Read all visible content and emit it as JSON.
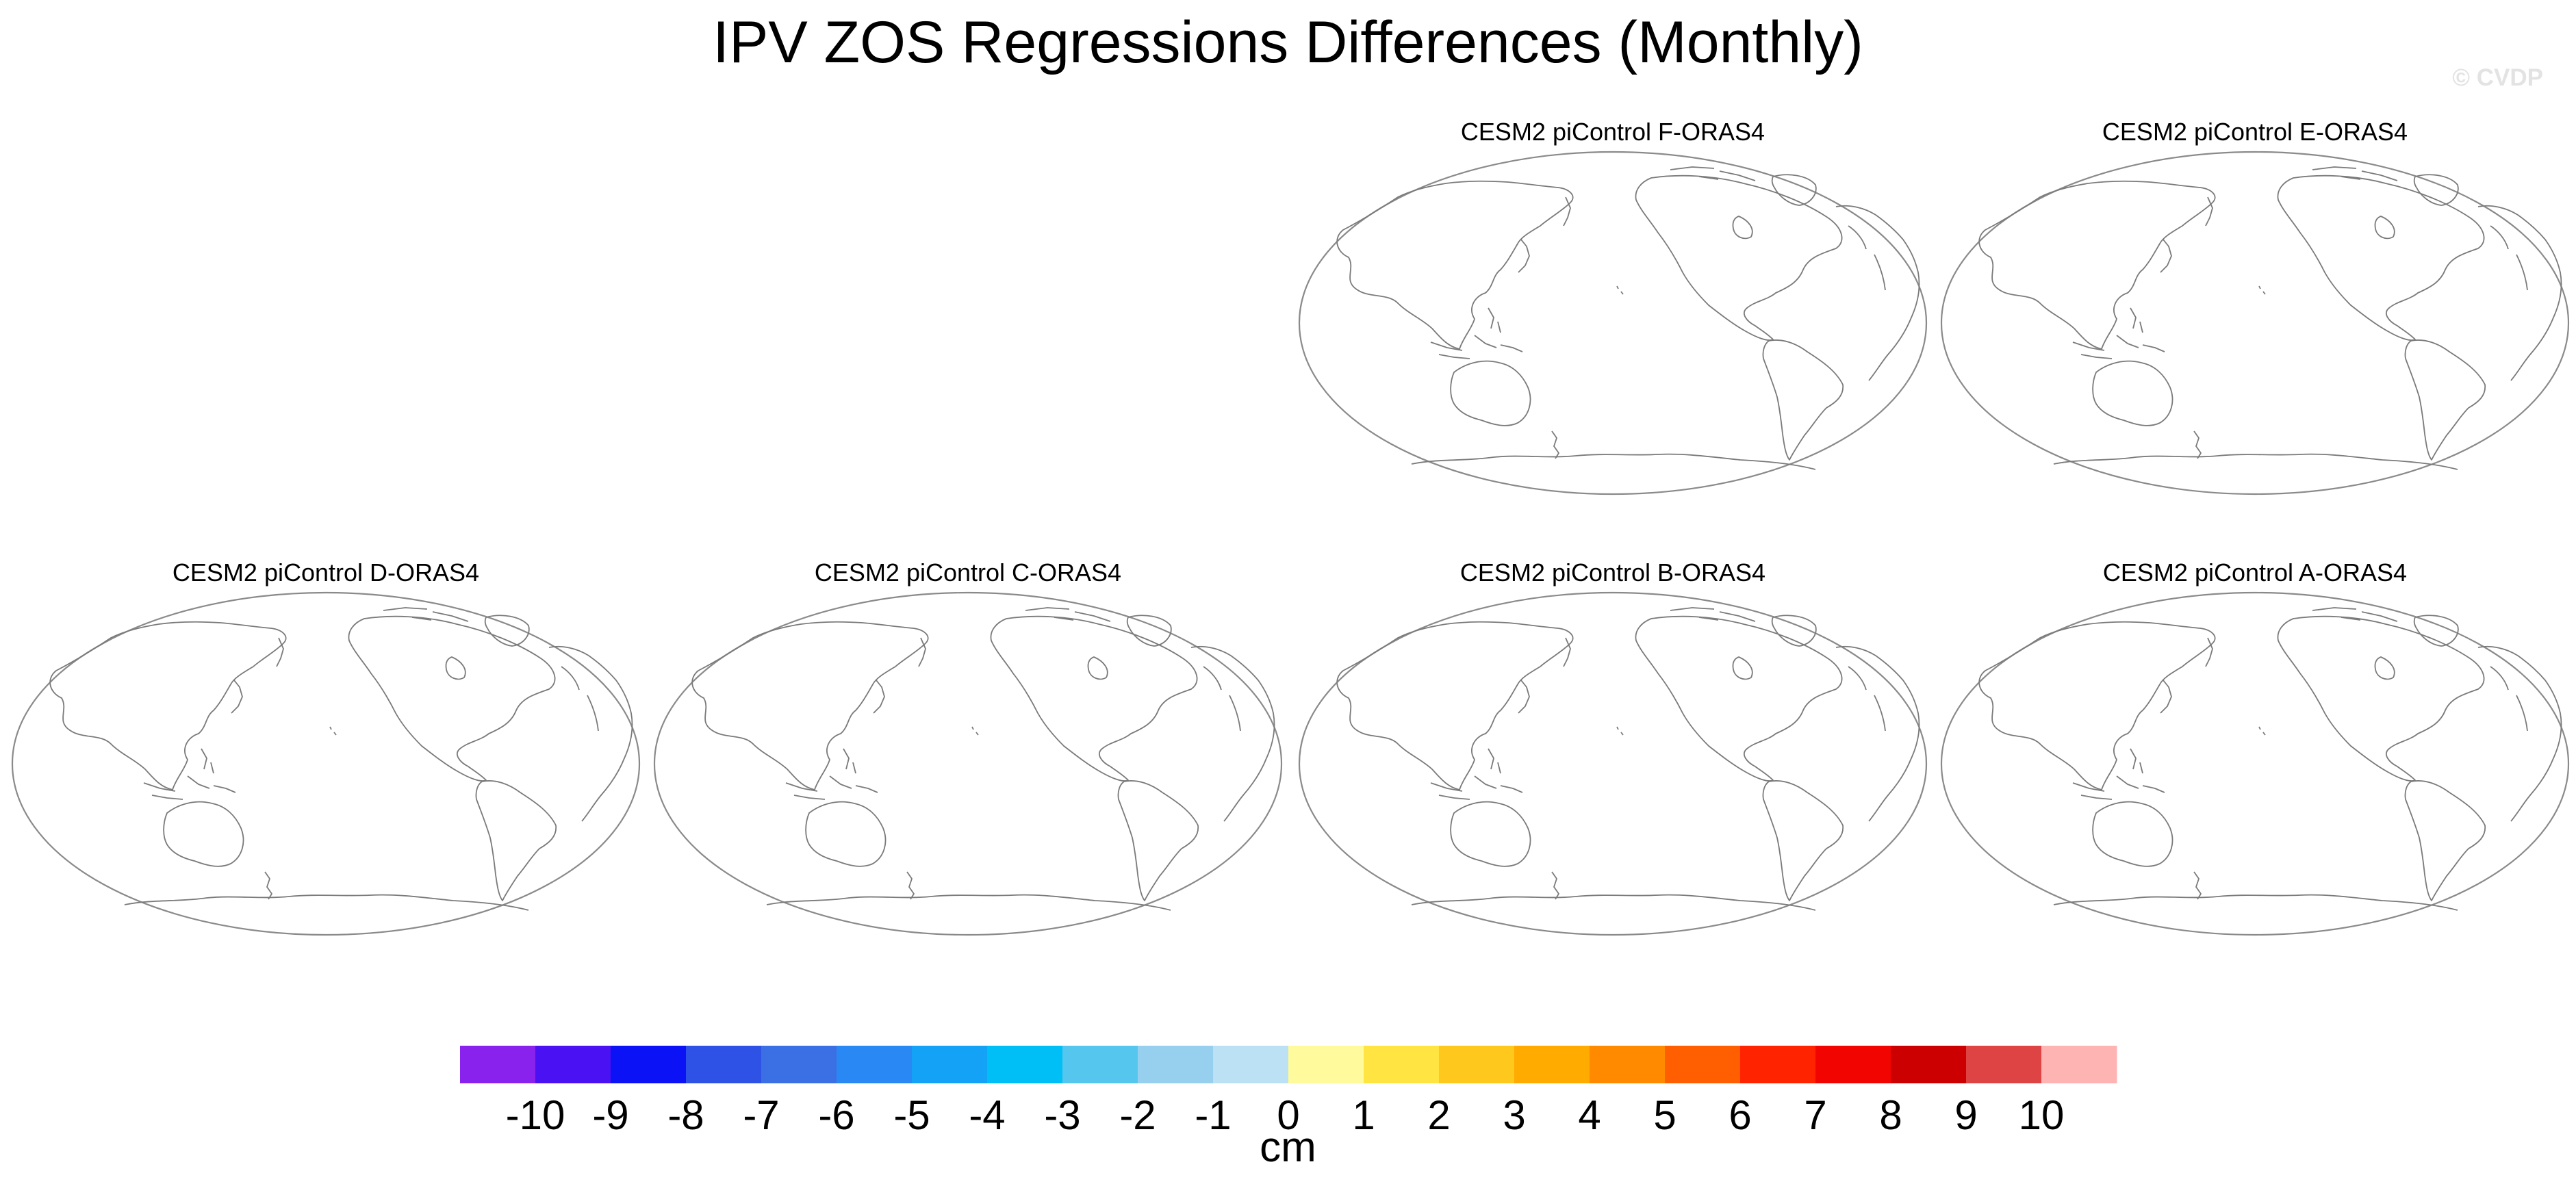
{
  "title": "IPV ZOS Regressions Differences (Monthly)",
  "watermark": "© CVDP",
  "panels": [
    {
      "title": "CESM2 piControl F-ORAS4"
    },
    {
      "title": "CESM2 piControl E-ORAS4"
    },
    {
      "title": "CESM2 piControl D-ORAS4"
    },
    {
      "title": "CESM2 piControl C-ORAS4"
    },
    {
      "title": "CESM2 piControl B-ORAS4"
    },
    {
      "title": "CESM2 piControl A-ORAS4"
    }
  ],
  "colorbar": {
    "unit": "cm",
    "tick_labels": [
      "-10",
      "-9",
      "-8",
      "-7",
      "-6",
      "-5",
      "-4",
      "-3",
      "-2",
      "-1",
      "0",
      "1",
      "2",
      "3",
      "4",
      "5",
      "6",
      "7",
      "8",
      "9",
      "10"
    ],
    "colors": [
      "#8a22ee",
      "#4a12f2",
      "#0b12f5",
      "#2e52e6",
      "#3a70e4",
      "#2a88f4",
      "#14a2f6",
      "#00bff6",
      "#55c6ee",
      "#96d0ee",
      "#bce0f4",
      "#fffa9b",
      "#ffe442",
      "#ffc81c",
      "#ffab00",
      "#ff8a00",
      "#ff5f00",
      "#ff2300",
      "#f20500",
      "#cc0000",
      "#de4444",
      "#ffb4b4"
    ]
  }
}
